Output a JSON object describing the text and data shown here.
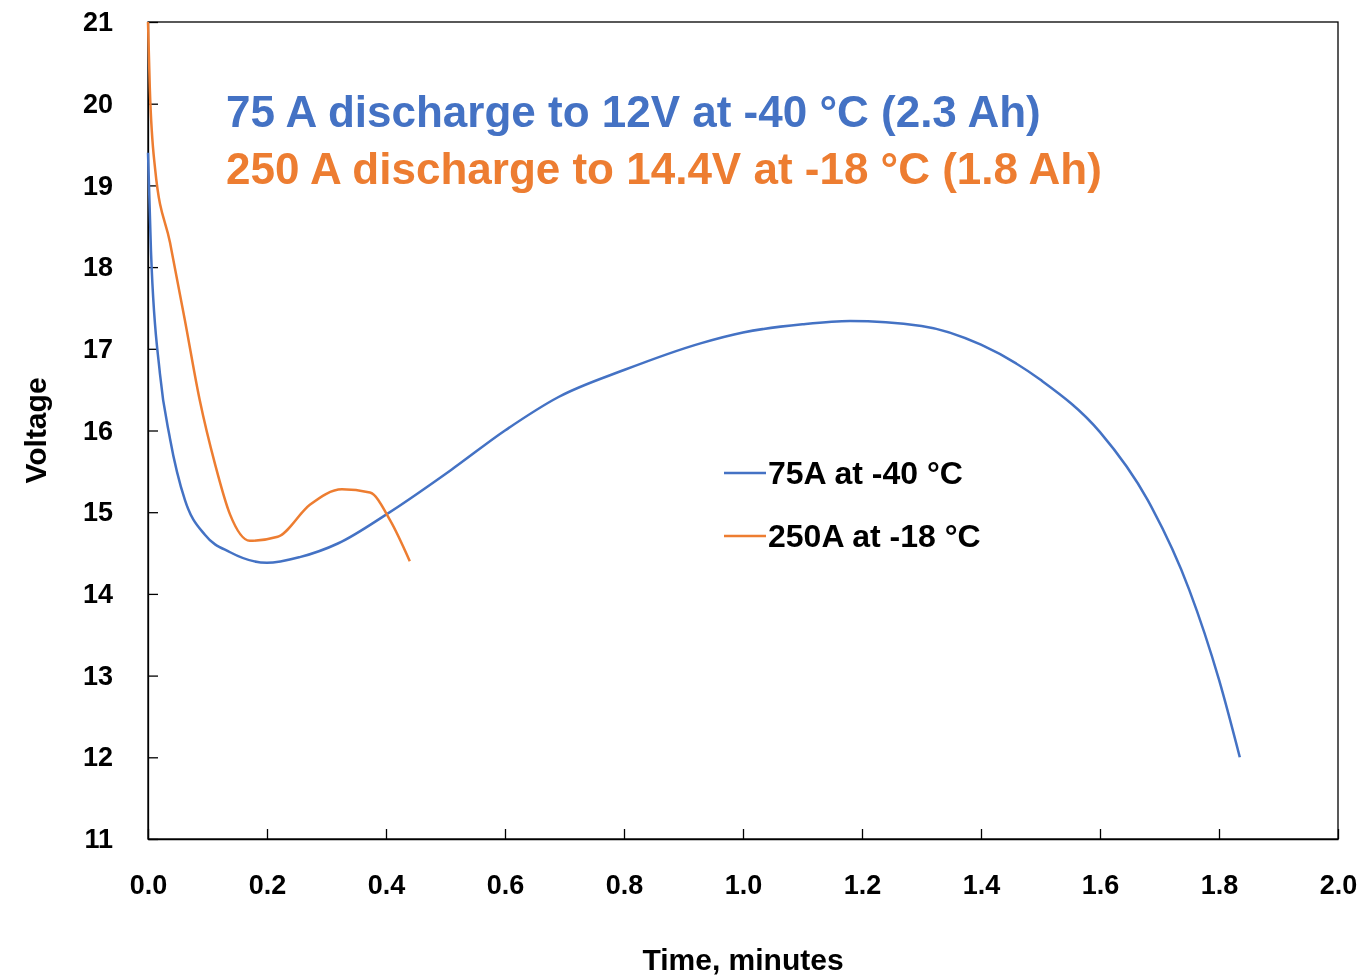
{
  "chart_data": {
    "type": "line",
    "xlabel": "Time, minutes",
    "ylabel": "Voltage",
    "annotations": [
      "75 A discharge to 12V at -40 °C (2.3 Ah)",
      "250 A discharge to 14.4V at -18 °C (1.8 Ah)"
    ],
    "series": [
      {
        "name": "75A at -40 °C",
        "color": "#4472c4",
        "x": [
          0,
          0.005,
          0.02,
          0.037,
          0.062,
          0.096,
          0.138,
          0.2,
          0.255,
          0.32,
          0.4,
          0.51,
          0.6,
          0.69,
          0.8,
          0.93,
          1.0,
          1.1,
          1.18,
          1.3,
          1.4,
          1.5,
          1.6,
          1.68,
          1.75,
          1.8,
          1.835
        ],
        "values": [
          19.4,
          18.2,
          16.7,
          15.9,
          15.15,
          14.72,
          14.51,
          14.38,
          14.45,
          14.62,
          14.97,
          15.52,
          16.0,
          16.41,
          16.74,
          17.07,
          17.2,
          17.3,
          17.34,
          17.28,
          17.05,
          16.62,
          15.98,
          15.15,
          14.05,
          12.95,
          12.0
        ]
      },
      {
        "name": "250A at -18 °C",
        "color": "#ed7d31",
        "x": [
          0,
          0.003,
          0.012,
          0.037,
          0.062,
          0.087,
          0.113,
          0.138,
          0.171,
          0.218,
          0.272,
          0.326,
          0.373,
          0.407,
          0.44
        ],
        "values": [
          21.0,
          20.2,
          19.2,
          18.3,
          17.35,
          16.37,
          15.58,
          14.97,
          14.65,
          14.7,
          15.09,
          15.28,
          15.24,
          14.9,
          14.4
        ]
      }
    ],
    "xlim": [
      0,
      2
    ],
    "xticks": [
      {
        "value": 0,
        "label": "0.0"
      },
      {
        "value": 0.2,
        "label": "0.2"
      },
      {
        "value": 0.4,
        "label": "0.4"
      },
      {
        "value": 0.6,
        "label": "0.6"
      },
      {
        "value": 0.8,
        "label": "0.8"
      },
      {
        "value": 1,
        "label": "1.0"
      },
      {
        "value": 1.2,
        "label": "1.2"
      },
      {
        "value": 1.4,
        "label": "1.4"
      },
      {
        "value": 1.6,
        "label": "1.6"
      },
      {
        "value": 1.8,
        "label": "1.8"
      },
      {
        "value": 2,
        "label": "2.0"
      }
    ],
    "ylim": [
      11,
      21
    ],
    "yticks": [
      11,
      12,
      13,
      14,
      15,
      16,
      17,
      18,
      19,
      20,
      21
    ],
    "legend": "center",
    "marker": "none",
    "line_style": "solid",
    "grid": false
  }
}
